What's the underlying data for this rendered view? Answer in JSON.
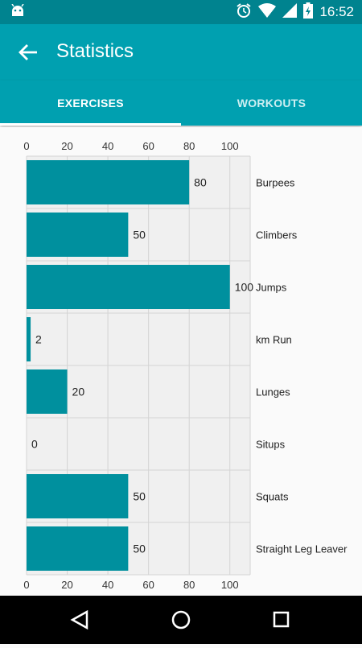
{
  "status_bar": {
    "time": "16:52",
    "icons": [
      "android-icon",
      "alarm-icon",
      "wifi-icon",
      "signal-icon",
      "battery-charging-icon"
    ]
  },
  "app_bar": {
    "title": "Statistics",
    "back_icon": "arrow-left-icon"
  },
  "tabs": [
    {
      "label": "EXERCISES",
      "selected": true
    },
    {
      "label": "WORKOUTS",
      "selected": false
    }
  ],
  "colors": {
    "status_bar": "#00838f",
    "app_bar": "#00a0b0",
    "bar": "#00909e",
    "plot_background": "#f0f0f0",
    "grid": "#d4d4d4"
  },
  "chart_data": {
    "type": "bar",
    "orientation": "horizontal",
    "categories": [
      "Burpees",
      "Climbers",
      "Jumps",
      "km Run",
      "Lunges",
      "Situps",
      "Squats",
      "Straight Leg Leaver"
    ],
    "values": [
      80,
      50,
      100,
      2,
      20,
      0,
      50,
      50
    ],
    "value_labels": [
      "80",
      "50",
      "100",
      "2",
      "20",
      "0",
      "50",
      "50"
    ],
    "xlim": [
      0,
      110
    ],
    "x_ticks": [
      0,
      20,
      40,
      60,
      80,
      100
    ],
    "x_tick_labels": [
      "0",
      "20",
      "40",
      "60",
      "80",
      "100"
    ],
    "x_axis_positions": [
      "top",
      "bottom"
    ],
    "category_labels_side": "right",
    "grid": true
  },
  "nav_bar": {
    "buttons": [
      "back-triangle-icon",
      "home-circle-icon",
      "recents-square-icon"
    ]
  }
}
